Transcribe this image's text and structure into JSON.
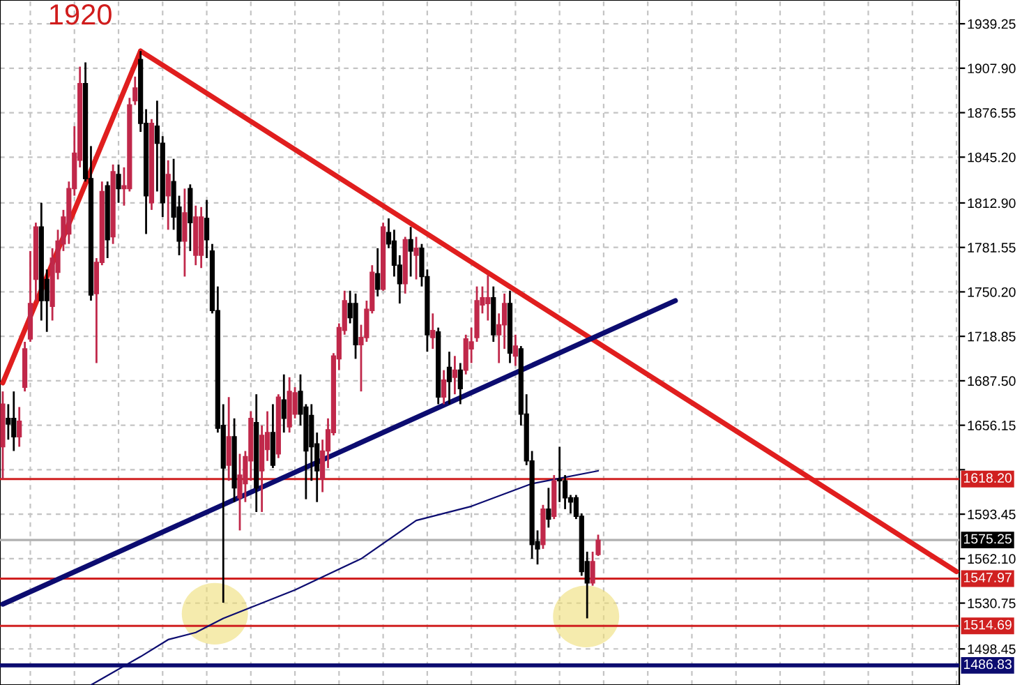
{
  "chart_data": {
    "type": "candlestick",
    "categories": [
      null,
      null,
      null,
      null,
      null,
      null,
      null,
      null,
      null,
      null,
      null,
      null,
      null,
      null,
      null,
      null,
      null,
      null,
      null,
      null,
      null,
      null,
      null,
      null,
      null,
      null,
      null,
      null,
      null,
      null,
      null,
      null,
      null,
      null,
      null,
      null,
      null,
      null,
      null,
      null,
      null,
      null,
      null,
      null,
      null,
      null,
      null,
      null,
      null,
      null,
      null,
      null,
      null,
      null,
      null,
      null,
      null,
      null,
      null,
      null,
      null,
      null,
      null,
      null,
      null,
      null,
      null,
      null,
      null,
      null,
      null,
      null,
      null,
      null,
      null,
      null,
      null,
      null,
      null,
      null,
      null,
      null,
      null,
      null,
      null,
      null,
      null,
      null,
      null,
      null,
      null,
      null,
      null,
      null,
      null,
      null,
      null,
      null,
      null,
      null,
      null,
      null,
      null,
      null,
      null,
      null,
      null,
      null,
      null,
      null,
      null,
      null,
      null,
      null,
      null,
      null,
      null,
      null,
      null,
      null,
      null,
      null,
      null,
      null,
      null,
      null,
      null,
      null,
      null,
      null,
      null,
      null,
      null,
      null,
      null,
      null,
      null,
      null,
      null,
      null,
      null,
      null,
      null,
      null,
      null,
      null,
      null,
      null,
      null,
      null,
      null,
      null,
      null,
      null,
      null,
      null,
      null,
      null,
      null,
      null,
      null,
      null,
      null,
      null,
      null,
      null,
      null,
      null,
      null,
      null,
      null,
      null,
      null,
      null
    ],
    "ohlc": [
      [
        1641,
        1680,
        1618,
        1671
      ],
      [
        1661,
        1671,
        1646,
        1657
      ],
      [
        1661,
        1680,
        1638,
        1648
      ],
      [
        1648,
        1669,
        1641,
        1659
      ],
      [
        1683,
        1715,
        1680,
        1710
      ],
      [
        1717,
        1779,
        1715,
        1742
      ],
      [
        1759,
        1799,
        1744,
        1796
      ],
      [
        1796,
        1813,
        1730,
        1744
      ],
      [
        1759,
        1766,
        1722,
        1744
      ],
      [
        1740,
        1781,
        1730,
        1774
      ],
      [
        1764,
        1794,
        1759,
        1786
      ],
      [
        1784,
        1808,
        1779,
        1803
      ],
      [
        1791,
        1828,
        1784,
        1823
      ],
      [
        1823,
        1867,
        1818,
        1848
      ],
      [
        1843,
        1909,
        1838,
        1897
      ],
      [
        1897,
        1912,
        1828,
        1830
      ],
      [
        1830,
        1853,
        1744,
        1748
      ],
      [
        1749,
        1774,
        1700,
        1771
      ],
      [
        1771,
        1828,
        1769,
        1821
      ],
      [
        1825,
        1828,
        1774,
        1787
      ],
      [
        1789,
        1840,
        1784,
        1835
      ],
      [
        1833,
        1840,
        1813,
        1823
      ],
      [
        1823,
        1838,
        1811,
        1825
      ],
      [
        1823,
        1887,
        1821,
        1882
      ],
      [
        1885,
        1902,
        1882,
        1894
      ],
      [
        1914,
        1920,
        1863,
        1869
      ],
      [
        1869,
        1879,
        1791,
        1818
      ],
      [
        1813,
        1872,
        1808,
        1869
      ],
      [
        1867,
        1885,
        1821,
        1855
      ],
      [
        1855,
        1860,
        1803,
        1813
      ],
      [
        1818,
        1843,
        1794,
        1833
      ],
      [
        1828,
        1844,
        1794,
        1803
      ],
      [
        1810,
        1818,
        1776,
        1786
      ],
      [
        1786,
        1823,
        1761,
        1806
      ],
      [
        1823,
        1826,
        1779,
        1799
      ],
      [
        1776,
        1811,
        1769,
        1803
      ],
      [
        1776,
        1810,
        1767,
        1803
      ],
      [
        1802,
        1815,
        1774,
        1787
      ],
      [
        1779,
        1784,
        1735,
        1737
      ],
      [
        1737,
        1754,
        1651,
        1654
      ],
      [
        1656,
        1671,
        1531,
        1626
      ],
      [
        1628,
        1676,
        1617,
        1648
      ],
      [
        1648,
        1661,
        1602,
        1612
      ],
      [
        1605,
        1636,
        1582,
        1621
      ],
      [
        1615,
        1638,
        1602,
        1634
      ],
      [
        1631,
        1666,
        1617,
        1661
      ],
      [
        1658,
        1678,
        1595,
        1612
      ],
      [
        1624,
        1656,
        1595,
        1649
      ],
      [
        1639,
        1666,
        1631,
        1651
      ],
      [
        1651,
        1671,
        1626,
        1628
      ],
      [
        1636,
        1678,
        1633,
        1676
      ],
      [
        1674,
        1692,
        1651,
        1661
      ],
      [
        1655,
        1690,
        1651,
        1680
      ],
      [
        1664,
        1683,
        1661,
        1679
      ],
      [
        1680,
        1692,
        1656,
        1664
      ],
      [
        1669,
        1671,
        1604,
        1638
      ],
      [
        1663,
        1671,
        1617,
        1641
      ],
      [
        1643,
        1651,
        1602,
        1624
      ],
      [
        1618,
        1646,
        1609,
        1638
      ],
      [
        1638,
        1661,
        1626,
        1653
      ],
      [
        1651,
        1707,
        1649,
        1705
      ],
      [
        1703,
        1728,
        1695,
        1725
      ],
      [
        1723,
        1751,
        1720,
        1744
      ],
      [
        1742,
        1751,
        1728,
        1732
      ],
      [
        1742,
        1749,
        1703,
        1713
      ],
      [
        1713,
        1727,
        1680,
        1718
      ],
      [
        1718,
        1744,
        1715,
        1738
      ],
      [
        1737,
        1769,
        1735,
        1764
      ],
      [
        1763,
        1781,
        1747,
        1752
      ],
      [
        1752,
        1799,
        1751,
        1796
      ],
      [
        1792,
        1802,
        1781,
        1784
      ],
      [
        1786,
        1794,
        1761,
        1769
      ],
      [
        1769,
        1776,
        1742,
        1756
      ],
      [
        1756,
        1789,
        1749,
        1787
      ],
      [
        1787,
        1796,
        1761,
        1779
      ],
      [
        1776,
        1789,
        1759,
        1781
      ],
      [
        1781,
        1784,
        1754,
        1761
      ],
      [
        1761,
        1766,
        1708,
        1720
      ],
      [
        1718,
        1735,
        1710,
        1723
      ],
      [
        1722,
        1725,
        1671,
        1676
      ],
      [
        1676,
        1695,
        1671,
        1688
      ],
      [
        1697,
        1708,
        1671,
        1687
      ],
      [
        1690,
        1705,
        1678,
        1695
      ],
      [
        1695,
        1700,
        1671,
        1682
      ],
      [
        1695,
        1720,
        1692,
        1717
      ],
      [
        1710,
        1725,
        1700,
        1715
      ],
      [
        1718,
        1754,
        1715,
        1744
      ],
      [
        1741,
        1754,
        1735,
        1746
      ],
      [
        1742,
        1762,
        1730,
        1746
      ],
      [
        1746,
        1754,
        1715,
        1720
      ],
      [
        1720,
        1735,
        1700,
        1727
      ],
      [
        1727,
        1749,
        1710,
        1742
      ],
      [
        1742,
        1751,
        1700,
        1707
      ],
      [
        1705,
        1720,
        1698,
        1712
      ],
      [
        1710,
        1712,
        1656,
        1664
      ],
      [
        1664,
        1678,
        1628,
        1631
      ],
      [
        1631,
        1638,
        1562,
        1572
      ],
      [
        1574,
        1582,
        1558,
        1569
      ],
      [
        1572,
        1600,
        1569,
        1597
      ],
      [
        1597,
        1612,
        1584,
        1590
      ],
      [
        1592,
        1621,
        1590,
        1617
      ],
      [
        1618,
        1641,
        1602,
        1617
      ],
      [
        1617,
        1621,
        1597,
        1605
      ],
      [
        1605,
        1607,
        1594,
        1602
      ],
      [
        1605,
        1607,
        1590,
        1592
      ],
      [
        1592,
        1594,
        1550,
        1553
      ],
      [
        1560,
        1567,
        1520,
        1545
      ],
      [
        1545,
        1567,
        1543,
        1560
      ],
      [
        1565,
        1579,
        1564,
        1575
      ],
      null,
      null,
      null,
      null,
      null,
      null,
      null,
      null,
      null,
      null,
      null,
      null,
      null,
      null,
      null,
      null,
      null,
      null,
      null,
      null,
      null,
      null,
      null,
      null,
      null,
      null,
      null,
      null,
      null,
      null,
      null,
      null,
      null,
      null,
      null,
      null,
      null,
      null,
      null,
      null,
      null,
      null,
      null,
      null,
      null,
      null,
      null,
      null,
      null,
      null,
      null,
      null,
      null,
      null,
      null,
      null,
      null,
      null,
      null,
      null,
      null,
      null,
      null,
      null,
      null
    ],
    "colors": [
      "#c0284a",
      "#000000",
      "#000000",
      "#c0284a",
      "#c0284a",
      "#c0284a",
      "#c0284a",
      "#000000",
      "#000000",
      "#c0284a",
      "#c0284a",
      "#c0284a",
      "#c0284a",
      "#c0284a",
      "#c0284a",
      "#000000",
      "#000000",
      "#c0284a",
      "#c0284a",
      "#000000",
      "#c0284a",
      "#000000",
      "#c0284a",
      "#c0284a",
      "#c0284a",
      "#000000",
      "#000000",
      "#c0284a",
      "#000000",
      "#000000",
      "#c0284a",
      "#000000",
      "#000000",
      "#c0284a",
      "#000000",
      "#c0284a",
      "#c0284a",
      "#000000",
      "#000000",
      "#000000",
      "#000000",
      "#c0284a",
      "#000000",
      "#c0284a",
      "#c0284a",
      "#c0284a",
      "#000000",
      "#c0284a",
      "#c0284a",
      "#000000",
      "#c0284a",
      "#000000",
      "#c0284a",
      "#c0284a",
      "#000000",
      "#000000",
      "#000000",
      "#000000",
      "#c0284a",
      "#c0284a",
      "#c0284a",
      "#c0284a",
      "#c0284a",
      "#000000",
      "#000000",
      "#c0284a",
      "#c0284a",
      "#c0284a",
      "#000000",
      "#c0284a",
      "#000000",
      "#000000",
      "#000000",
      "#c0284a",
      "#000000",
      "#c0284a",
      "#000000",
      "#000000",
      "#c0284a",
      "#000000",
      "#c0284a",
      "#000000",
      "#c0284a",
      "#000000",
      "#c0284a",
      "#c0284a",
      "#c0284a",
      "#c0284a",
      "#c0284a",
      "#000000",
      "#c0284a",
      "#c0284a",
      "#000000",
      "#c0284a",
      "#000000",
      "#000000",
      "#000000",
      "#000000",
      "#c0284a",
      "#000000",
      "#c0284a",
      "#000000",
      "#000000",
      "#000000",
      "#000000",
      "#000000",
      "#000000",
      "#c0284a",
      "#c0284a",
      null,
      null,
      null,
      null,
      null,
      null,
      null,
      null,
      null,
      null,
      null,
      null,
      null,
      null,
      null,
      null,
      null,
      null,
      null,
      null,
      null,
      null,
      null,
      null,
      null,
      null,
      null,
      null,
      null,
      null,
      null,
      null,
      null,
      null,
      null,
      null,
      null,
      null,
      null,
      null,
      null,
      null,
      null,
      null,
      null,
      null,
      null,
      null,
      null,
      null,
      null,
      null,
      null,
      null,
      null,
      null,
      null,
      null,
      null,
      null,
      null,
      null,
      null,
      null,
      null
    ],
    "series": [
      {
        "type": "line",
        "color": "#e01e1e",
        "values": [
          1686,
          null,
          null,
          null,
          null,
          null,
          null,
          null,
          null,
          null,
          null,
          null,
          null,
          null,
          null,
          null,
          null,
          null,
          null,
          null,
          null,
          null,
          null,
          null,
          null,
          1920,
          null,
          null,
          null,
          null,
          null,
          null,
          null,
          null,
          null,
          null,
          null,
          null,
          null,
          null,
          null,
          null,
          null,
          null,
          null,
          null,
          null,
          null,
          null,
          null,
          null,
          null,
          null,
          null,
          null,
          null,
          null,
          null,
          null,
          null,
          null,
          null,
          null,
          null,
          null,
          null,
          null,
          null,
          null,
          null,
          null,
          null,
          null,
          null,
          null,
          null,
          null,
          null,
          null,
          null,
          null,
          null,
          null,
          null,
          null,
          null,
          null,
          null,
          null,
          null,
          null,
          null,
          null,
          null,
          null,
          null,
          null,
          null,
          null,
          null,
          null,
          null,
          null,
          null,
          null,
          null,
          null,
          null,
          null,
          null,
          null,
          null,
          null,
          null,
          null,
          null,
          null,
          null,
          null,
          null,
          null,
          null,
          null,
          null,
          null,
          null,
          null,
          null,
          null,
          null,
          null,
          null,
          null,
          null,
          null,
          null,
          null,
          null,
          null,
          null,
          null,
          null,
          null,
          null,
          null,
          null,
          null,
          null,
          null,
          null,
          null,
          null,
          null,
          null,
          null,
          null,
          null,
          null,
          null,
          null,
          null,
          null,
          null,
          null,
          null,
          null,
          null,
          null,
          null,
          null,
          null,
          null,
          null,
          null
        ]
      },
      {
        "type": "line",
        "color": "#e01e1e",
        "values": [
          null,
          null,
          null,
          null,
          null,
          null,
          null,
          null,
          null,
          null,
          null,
          null,
          null,
          null,
          null,
          null,
          null,
          null,
          null,
          null,
          null,
          null,
          null,
          null,
          null,
          1920,
          null,
          null,
          null,
          null,
          null,
          null,
          null,
          null,
          null,
          null,
          null,
          null,
          null,
          null,
          null,
          null,
          null,
          null,
          null,
          null,
          null,
          null,
          null,
          null,
          null,
          null,
          null,
          null,
          null,
          null,
          null,
          null,
          null,
          null,
          null,
          null,
          null,
          null,
          null,
          null,
          null,
          null,
          null,
          null,
          null,
          null,
          null,
          null,
          null,
          null,
          null,
          null,
          null,
          null,
          null,
          null,
          null,
          null,
          null,
          null,
          null,
          null,
          null,
          null,
          null,
          null,
          null,
          null,
          null,
          null,
          null,
          null,
          null,
          null,
          null,
          null,
          null,
          null,
          null,
          null,
          null,
          null,
          null,
          null,
          null,
          null,
          null,
          null,
          null,
          null,
          null,
          null,
          null,
          null,
          null,
          null,
          null,
          null,
          null,
          null,
          null,
          null,
          null,
          null,
          null,
          null,
          null,
          null,
          null,
          null,
          null,
          null,
          null,
          null,
          null,
          null,
          null,
          null,
          null,
          null,
          null,
          null,
          null,
          null,
          null,
          null,
          null,
          null,
          null,
          null,
          null,
          null,
          null,
          null,
          null,
          null,
          null,
          null,
          null,
          null,
          null,
          null,
          null,
          null,
          null,
          null,
          null,
          1553
        ]
      },
      {
        "type": "line",
        "color": "#0c0c70",
        "values": [
          1530,
          null,
          null,
          null,
          null,
          null,
          null,
          null,
          null,
          null,
          null,
          null,
          null,
          null,
          null,
          null,
          null,
          null,
          null,
          null,
          null,
          null,
          null,
          null,
          null,
          null,
          null,
          null,
          null,
          null,
          null,
          null,
          null,
          null,
          null,
          null,
          null,
          null,
          null,
          null,
          null,
          null,
          null,
          null,
          null,
          null,
          null,
          null,
          null,
          null,
          null,
          null,
          null,
          null,
          null,
          null,
          null,
          null,
          null,
          null,
          null,
          null,
          null,
          null,
          null,
          null,
          null,
          null,
          null,
          null,
          null,
          null,
          null,
          null,
          null,
          null,
          null,
          null,
          null,
          null,
          null,
          null,
          null,
          null,
          null,
          null,
          null,
          null,
          null,
          null,
          null,
          null,
          null,
          null,
          null,
          null,
          null,
          null,
          null,
          null,
          null,
          null,
          null,
          null,
          null,
          null,
          null,
          null,
          null,
          null,
          null,
          null,
          null,
          null,
          null,
          null,
          null,
          null,
          null,
          null,
          null,
          null,
          1744,
          null,
          null,
          null,
          null,
          null,
          null,
          null,
          null,
          null,
          null,
          null,
          null,
          null,
          null,
          null,
          null,
          null,
          null,
          null,
          null,
          null,
          null,
          null,
          null,
          null,
          null,
          null,
          null,
          null,
          null,
          null,
          null,
          null,
          null,
          null,
          null,
          null,
          null,
          null,
          null,
          null,
          null,
          null,
          null,
          null,
          null,
          null,
          null,
          null,
          null,
          null
        ]
      },
      {
        "type": "line",
        "color": "#0c0c70",
        "values": [
          null,
          null,
          null,
          null,
          null,
          null,
          null,
          null,
          null,
          null,
          null,
          null,
          null,
          null,
          null,
          null,
          1473,
          null,
          null,
          null,
          null,
          null,
          null,
          null,
          null,
          1493,
          null,
          null,
          null,
          null,
          1505,
          null,
          null,
          null,
          null,
          1510,
          null,
          null,
          null,
          null,
          1520,
          null,
          null,
          null,
          null,
          null,
          null,
          null,
          null,
          null,
          null,
          null,
          null,
          1540,
          null,
          null,
          null,
          null,
          null,
          null,
          null,
          null,
          null,
          null,
          null,
          1562,
          null,
          null,
          null,
          null,
          null,
          null,
          null,
          null,
          null,
          1589,
          null,
          null,
          null,
          null,
          null,
          null,
          null,
          null,
          null,
          1599,
          null,
          null,
          null,
          null,
          null,
          null,
          null,
          null,
          null,
          null,
          1615,
          null,
          null,
          null,
          null,
          null,
          null,
          null,
          null,
          null,
          null,
          null,
          1624,
          null,
          null,
          null,
          null,
          null,
          null,
          null,
          null,
          null,
          null,
          null,
          null,
          null,
          null,
          null,
          null,
          null,
          null,
          null,
          null,
          null,
          null,
          null,
          null,
          null,
          null,
          null,
          null,
          null,
          null,
          null,
          null,
          null,
          null,
          null,
          null,
          null,
          null,
          null,
          null,
          null,
          null,
          null,
          null,
          null,
          null,
          null,
          null,
          null,
          null,
          null,
          null,
          null,
          null,
          null,
          null,
          null,
          null,
          null,
          null,
          null,
          null,
          null,
          null,
          null
        ]
      }
    ],
    "ref_lines": [
      {
        "axis": "y",
        "value": 1618.2,
        "label": "1618.20",
        "color": "#d02020",
        "line_style": "solid"
      },
      {
        "axis": "y",
        "value": 1575.25,
        "label": "1575.25",
        "color": "#b0b0b0",
        "line_style": "solid"
      },
      {
        "axis": "y",
        "value": 1547.97,
        "label": "1547.97",
        "color": "#d02020",
        "line_style": "solid"
      },
      {
        "axis": "y",
        "value": 1514.69,
        "label": "1514.69",
        "color": "#d02020",
        "line_style": "solid"
      },
      {
        "axis": "y",
        "value": 1486.83,
        "label": "1486.83",
        "color": "#0c0c70",
        "line_style": "solid"
      }
    ],
    "annotations": [
      "1920"
    ],
    "ylim": [
      1473,
      1956
    ],
    "yticks": [
      {
        "value": 1498.45,
        "label": "1498.45"
      },
      {
        "value": 1530.75,
        "label": "1530.75"
      },
      {
        "value": 1562.1,
        "label": "1562.10"
      },
      {
        "value": 1593.45,
        "label": "1593.45"
      },
      {
        "value": 1624.8,
        "label": null
      },
      {
        "value": 1656.15,
        "label": "1656.15"
      },
      {
        "value": 1687.5,
        "label": "1687.50"
      },
      {
        "value": 1718.85,
        "label": "1718.85"
      },
      {
        "value": 1750.2,
        "label": "1750.20"
      },
      {
        "value": 1781.55,
        "label": "1781.55"
      },
      {
        "value": 1812.9,
        "label": "1812.90"
      },
      {
        "value": 1845.2,
        "label": "1845.20"
      },
      {
        "value": 1876.55,
        "label": "1876.55"
      },
      {
        "value": 1907.9,
        "label": "1907.90"
      },
      {
        "value": 1939.25,
        "label": "1939.25"
      }
    ],
    "grid": true,
    "tick_labels": "y"
  }
}
